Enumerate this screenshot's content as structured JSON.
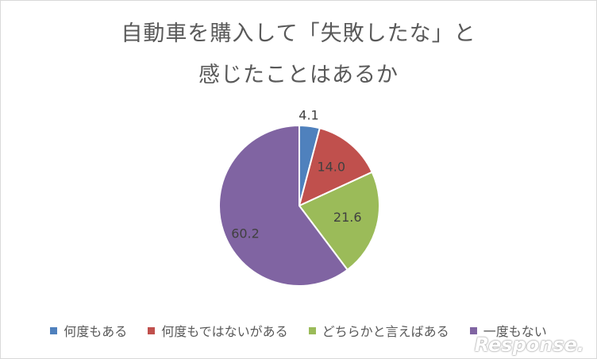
{
  "chart_data": {
    "type": "pie",
    "title_line1": "自動車を購入して「失敗したな」と",
    "title_line2": "感じたことはあるか",
    "categories": [
      "何度もある",
      "何度もではないがある",
      "どちらかと言えばある",
      "一度もない"
    ],
    "values": [
      4.1,
      14.0,
      21.6,
      60.2
    ],
    "labels": [
      "4.1",
      "14.0",
      "21.6",
      "60.2"
    ],
    "colors": [
      "#4f81bd",
      "#c0504d",
      "#9bbb59",
      "#8064a2"
    ],
    "legend_position": "bottom"
  },
  "watermark": "Response."
}
